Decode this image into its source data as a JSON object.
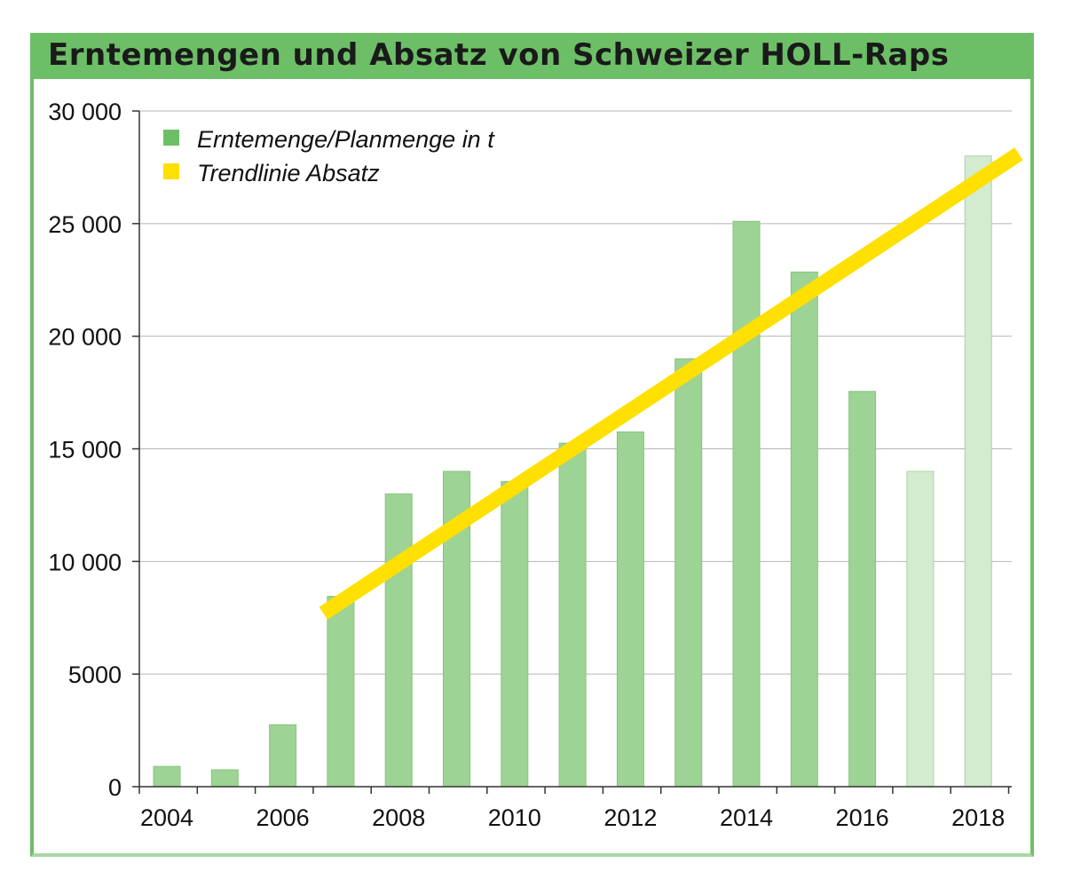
{
  "chart_data": {
    "type": "bar",
    "title": "Erntemengen und Absatz von Schweizer HOLL-Raps",
    "xlabel": "",
    "ylabel": "",
    "ylim": [
      0,
      30000
    ],
    "y_ticks": [
      0,
      5000,
      10000,
      15000,
      20000,
      25000,
      30000
    ],
    "y_tick_labels": [
      "0",
      "5000",
      "10 000",
      "15 000",
      "20 000",
      "25 000",
      "30 000"
    ],
    "x_tick_labels": [
      "2004",
      "2006",
      "2008",
      "2010",
      "2012",
      "2014",
      "2016",
      "2018"
    ],
    "grid": true,
    "legend_position": "top-left",
    "categories": [
      "2004",
      "2005",
      "2006",
      "2007",
      "2008",
      "2009",
      "2010",
      "2011",
      "2012",
      "2013",
      "2014",
      "2015",
      "2016",
      "2017",
      "2018"
    ],
    "series": [
      {
        "name": "Erntemenge/Planmenge in t",
        "values": [
          900,
          750,
          2750,
          8450,
          13000,
          14000,
          13550,
          15250,
          15750,
          19000,
          25100,
          22850,
          17550,
          14000,
          28000
        ],
        "planned": [
          false,
          false,
          false,
          false,
          false,
          false,
          false,
          false,
          false,
          false,
          false,
          false,
          false,
          true,
          true
        ],
        "color": "#9dd394",
        "planned_color": "#d3ebcf"
      },
      {
        "name": "Trendlinie Absatz",
        "type": "line",
        "x": [
          2006.7,
          2018.7
        ],
        "values": [
          7700,
          28100
        ],
        "color": "#ffe000"
      }
    ]
  },
  "colors": {
    "frame": "#6dbf67",
    "grid": "#b4b4b4",
    "axis": "#333333"
  }
}
